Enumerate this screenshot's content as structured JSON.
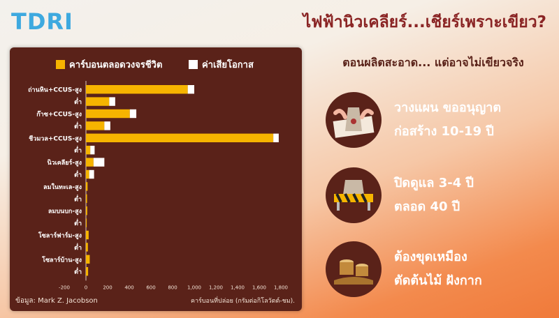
{
  "header": {
    "logo": "TDRI",
    "title": "ไฟฟ้านิวเคลียร์...เชียร์เพราะเขียว?"
  },
  "subtitle": "ตอนผลิตสะอาด... แต่อาจไม่เขียวจริง",
  "info_items": [
    {
      "line1": "วางแผน ขออนุญาต",
      "line2": "ก่อสร้าง 10-19 ปี",
      "icon": "construction-icon"
    },
    {
      "line1": "ปิดดูแล 3-4 ปี",
      "line2": "ตลอด 40 ปี",
      "icon": "decommission-barrier-icon"
    },
    {
      "line1": "ต้องขุดเหมือง",
      "line2": "ตัดต้นไม้ ฝังกาก",
      "icon": "tree-stump-icon"
    }
  ],
  "footer": {
    "source": "ข้อมูล: Mark Z. Jacobson",
    "unit": "คาร์บอนที่ปล่อย (กรัมต่อกิโลวัตต์-ชม)."
  },
  "colors": {
    "lifecycle": "#f6b400",
    "opportunity": "#ffffff",
    "panel": "#5a2219",
    "title": "#8a2424"
  },
  "chart_data": {
    "type": "bar",
    "orientation": "horizontal",
    "stacked": true,
    "categories": [
      "ถ่านหิน+CCUS-สูง",
      "ต่ำ",
      "ก๊าซ+CCUS-สูง",
      "ต่ำ",
      "ชีวมวล+CCUS-สูง",
      "ต่ำ",
      "นิวเคลียร์-สูง",
      "ต่ำ",
      "ลมในทะเล-สูง",
      "ต่ำ",
      "ลมบนบก-สูง",
      "ต่ำ",
      "โซลาร์ฟาร์ม-สูง",
      "ต่ำ",
      "โซลาร์บ้าน-สูง",
      "ต่ำ"
    ],
    "series": [
      {
        "name": "คาร์บอนตลอดวงจรชีวิต",
        "values": [
          940,
          215,
          405,
          170,
          1730,
          40,
          70,
          30,
          15,
          10,
          12,
          7,
          25,
          18,
          35,
          20
        ]
      },
      {
        "name": "ค่าเสียโอกาส",
        "values": [
          60,
          55,
          60,
          55,
          50,
          40,
          100,
          45,
          0,
          0,
          0,
          0,
          0,
          0,
          0,
          0
        ]
      }
    ],
    "xlim": [
      -200,
      1800
    ],
    "xticks": [
      "-200",
      "0",
      "200",
      "400",
      "600",
      "800",
      "1,000",
      "1,200",
      "1,400",
      "1,600",
      "1,800"
    ],
    "xlabel": "คาร์บอนที่ปล่อย (กรัมต่อกิโลวัตต์-ชม).",
    "legend": "top"
  }
}
